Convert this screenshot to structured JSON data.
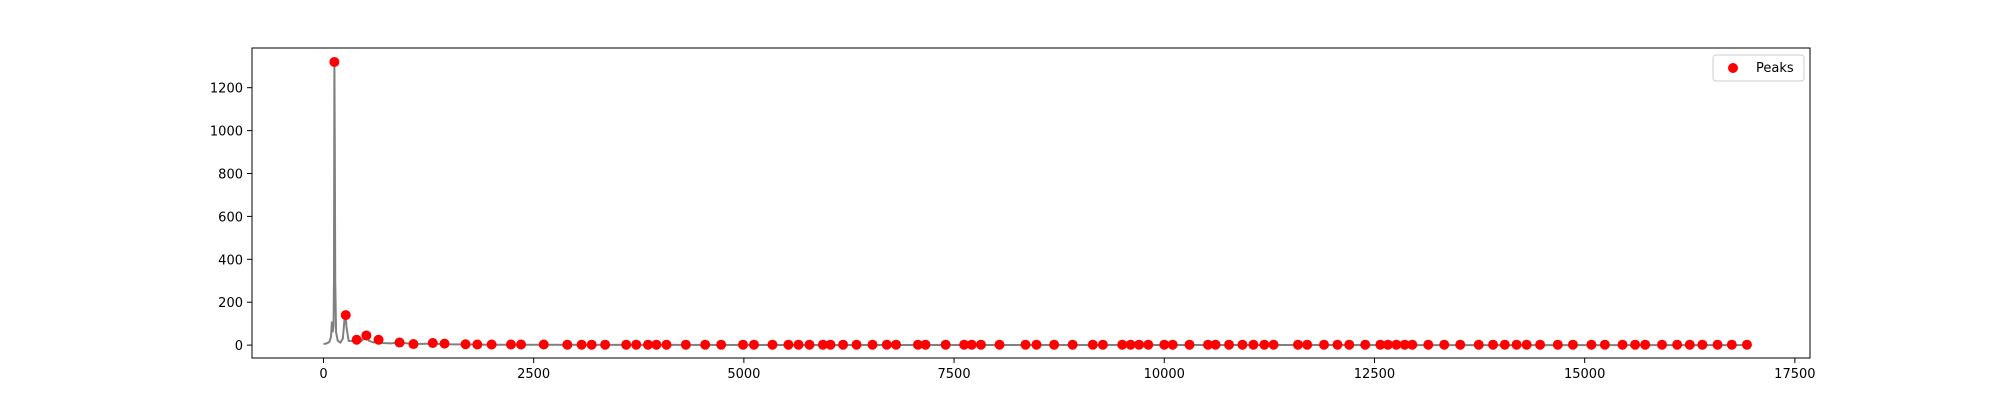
{
  "chart_data": {
    "type": "line",
    "title": "",
    "xlabel": "",
    "ylabel": "",
    "xlim": [
      -850,
      17680
    ],
    "ylim": [
      -60,
      1385
    ],
    "x_ticks": [
      0,
      2500,
      5000,
      7500,
      10000,
      12500,
      15000,
      17500
    ],
    "x_tick_labels": [
      "0",
      "2500",
      "5000",
      "7500",
      "10000",
      "12500",
      "15000",
      "17500"
    ],
    "y_ticks": [
      0,
      200,
      400,
      600,
      800,
      1000,
      1200
    ],
    "y_tick_labels": [
      "0",
      "200",
      "400",
      "600",
      "800",
      "1000",
      "1200"
    ],
    "grid": false,
    "legend": {
      "position": "top-right",
      "entries": [
        "Peaks"
      ]
    },
    "colors": {
      "signal": "#808080",
      "peaks": "#ff0000"
    },
    "series": [
      {
        "type": "line",
        "values": [
          [
            0,
            5
          ],
          [
            40,
            8
          ],
          [
            70,
            15
          ],
          [
            90,
            40
          ],
          [
            100,
            110
          ],
          [
            110,
            60
          ],
          [
            120,
            90
          ],
          [
            125,
            300
          ],
          [
            130,
            1320
          ],
          [
            135,
            900
          ],
          [
            140,
            300
          ],
          [
            150,
            60
          ],
          [
            170,
            20
          ],
          [
            200,
            12
          ],
          [
            230,
            30
          ],
          [
            250,
            120
          ],
          [
            262,
            140
          ],
          [
            275,
            80
          ],
          [
            300,
            20
          ],
          [
            350,
            18
          ],
          [
            390,
            25
          ],
          [
            420,
            15
          ],
          [
            460,
            22
          ],
          [
            500,
            45
          ],
          [
            540,
            20
          ],
          [
            600,
            12
          ],
          [
            650,
            25
          ],
          [
            700,
            10
          ],
          [
            800,
            8
          ],
          [
            900,
            12
          ],
          [
            1000,
            8
          ],
          [
            1100,
            5
          ],
          [
            1300,
            7
          ],
          [
            1450,
            4
          ],
          [
            2000,
            2
          ],
          [
            4000,
            1
          ],
          [
            8000,
            0.5
          ],
          [
            12000,
            0.3
          ],
          [
            16900,
            0.2
          ]
        ]
      },
      {
        "name": "Peaks",
        "type": "scatter",
        "x": [
          130,
          265,
          395,
          510,
          655,
          905,
          1070,
          1300,
          1440,
          1690,
          1830,
          2000,
          2230,
          2350,
          2620,
          2900,
          3070,
          3190,
          3350,
          3600,
          3720,
          3860,
          3960,
          4080,
          4310,
          4540,
          4730,
          4990,
          5120,
          5340,
          5530,
          5650,
          5780,
          5940,
          6030,
          6180,
          6340,
          6530,
          6700,
          6810,
          7070,
          7160,
          7400,
          7620,
          7710,
          7820,
          8040,
          8350,
          8480,
          8690,
          8910,
          9150,
          9270,
          9500,
          9600,
          9700,
          9810,
          10000,
          10100,
          10300,
          10520,
          10610,
          10770,
          10930,
          11060,
          11190,
          11300,
          11590,
          11700,
          11900,
          12060,
          12200,
          12390,
          12570,
          12660,
          12760,
          12860,
          12950,
          13140,
          13330,
          13520,
          13740,
          13910,
          14050,
          14190,
          14310,
          14470,
          14680,
          14860,
          15080,
          15240,
          15450,
          15600,
          15720,
          15920,
          16100,
          16250,
          16400,
          16580,
          16750,
          16930
        ],
        "y": [
          1320,
          140,
          25,
          45,
          25,
          12,
          5,
          10,
          7,
          4,
          3,
          3,
          3,
          3,
          3,
          2,
          2,
          2,
          2,
          2,
          2,
          2,
          2,
          2,
          2,
          2,
          2,
          2,
          2,
          2,
          2,
          2,
          2,
          2,
          2,
          2,
          2,
          2,
          2,
          2,
          2,
          2,
          2,
          2,
          2,
          2,
          2,
          2,
          2,
          2,
          2,
          2,
          2,
          2,
          2,
          2,
          2,
          2,
          2,
          2,
          2,
          2,
          2,
          2,
          2,
          2,
          2,
          2,
          2,
          2,
          2,
          2,
          2,
          2,
          2,
          2,
          2,
          2,
          2,
          2,
          2,
          2,
          2,
          2,
          2,
          2,
          2,
          2,
          2,
          2,
          2,
          2,
          2,
          2,
          2,
          2,
          2,
          2,
          2,
          2,
          2
        ]
      }
    ]
  }
}
